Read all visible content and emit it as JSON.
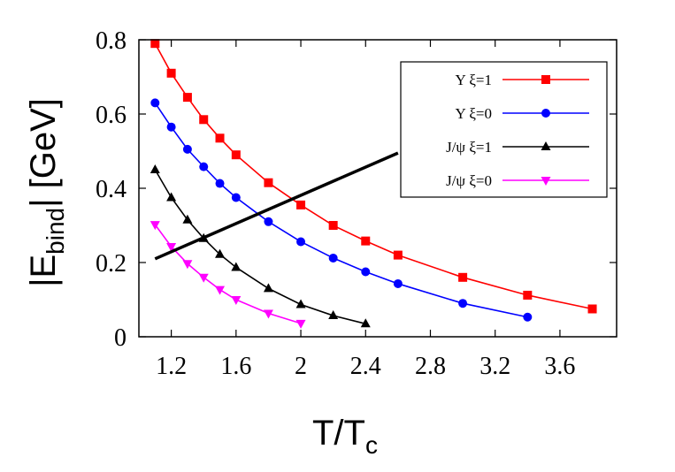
{
  "chart_data": {
    "type": "line",
    "xlabel": {
      "main": "T/T",
      "sub": "c"
    },
    "ylabel": {
      "prefix": "|E",
      "sub": "bind",
      "suffix": "|  [GeV]"
    },
    "xlim": [
      1.0,
      3.95
    ],
    "ylim": [
      0,
      0.8
    ],
    "xticks": [
      "1.2",
      "1.6",
      "2",
      "2.4",
      "2.8",
      "3.2",
      "3.6"
    ],
    "yticks": [
      "0",
      "0.2",
      "0.4",
      "0.6",
      "0.8"
    ],
    "legend_position": "top-right",
    "series": [
      {
        "name": "Υ  ξ=1",
        "color": "#ff0000",
        "marker": "square",
        "x": [
          1.1,
          1.2,
          1.3,
          1.4,
          1.5,
          1.6,
          1.8,
          2.0,
          2.2,
          2.4,
          2.6,
          3.0,
          3.4,
          3.8
        ],
        "y": [
          0.79,
          0.71,
          0.645,
          0.585,
          0.535,
          0.49,
          0.415,
          0.355,
          0.3,
          0.258,
          0.22,
          0.16,
          0.112,
          0.075
        ]
      },
      {
        "name": "Υ  ξ=0",
        "color": "#0000ff",
        "marker": "circle",
        "x": [
          1.1,
          1.2,
          1.3,
          1.4,
          1.5,
          1.6,
          1.8,
          2.0,
          2.2,
          2.4,
          2.6,
          3.0,
          3.4
        ],
        "y": [
          0.63,
          0.565,
          0.505,
          0.458,
          0.413,
          0.375,
          0.31,
          0.256,
          0.212,
          0.175,
          0.143,
          0.09,
          0.053
        ]
      },
      {
        "name": "J/ψ  ξ=1",
        "color": "#000000",
        "marker": "triangle-up",
        "x": [
          1.1,
          1.2,
          1.3,
          1.4,
          1.5,
          1.6,
          1.8,
          2.0,
          2.2,
          2.4
        ],
        "y": [
          0.45,
          0.375,
          0.315,
          0.265,
          0.222,
          0.187,
          0.13,
          0.087,
          0.057,
          0.035
        ]
      },
      {
        "name": "J/ψ  ξ=0",
        "color": "#ff00ff",
        "marker": "triangle-down",
        "x": [
          1.1,
          1.2,
          1.3,
          1.4,
          1.5,
          1.6,
          1.8,
          2.0
        ],
        "y": [
          0.302,
          0.243,
          0.197,
          0.16,
          0.127,
          0.1,
          0.063,
          0.036
        ]
      }
    ],
    "annotation_line": {
      "color": "#000000",
      "x": [
        1.1,
        2.6
      ],
      "y": [
        0.21,
        0.495
      ]
    }
  }
}
